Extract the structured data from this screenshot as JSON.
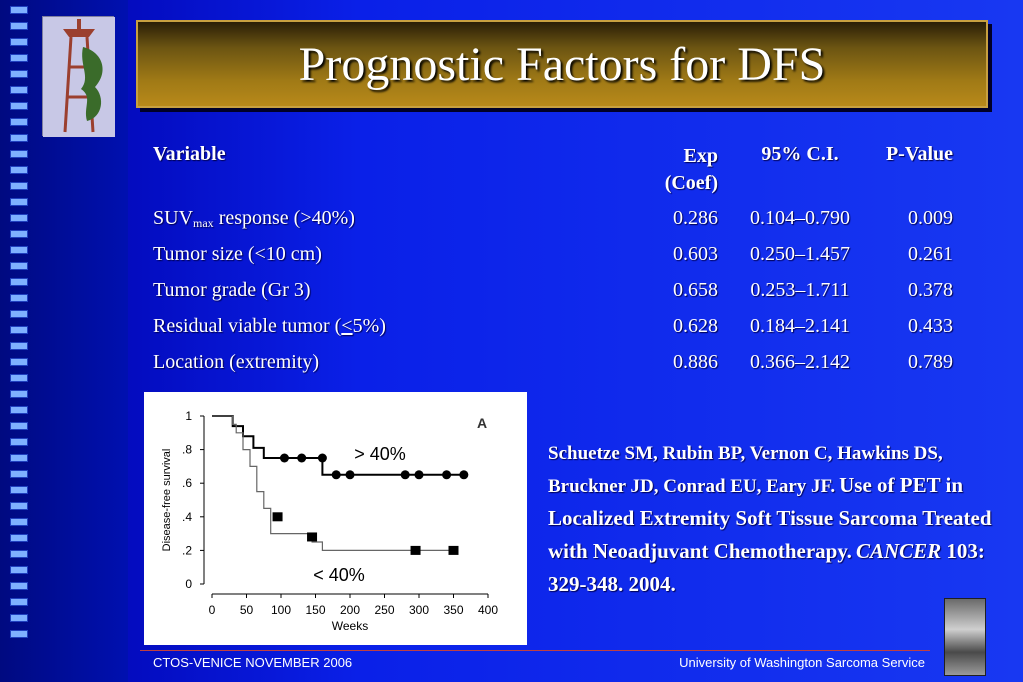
{
  "slide": {
    "title": "Prognostic Factors for DFS"
  },
  "table": {
    "headers": {
      "variable": "Variable",
      "exp_line1": "Exp",
      "exp_line2": "(Coef)",
      "ci": "95% C.I.",
      "pvalue": "P-Value"
    },
    "rows": [
      {
        "variable_main": "SUV",
        "variable_sub": "max",
        "variable_rest": " response (>40%)",
        "exp": "0.286",
        "ci": "0.104–0.790",
        "pvalue": "0.009"
      },
      {
        "variable": "Tumor size (<10 cm)",
        "exp": "0.603",
        "ci": "0.250–1.457",
        "pvalue": "0.261"
      },
      {
        "variable": "Tumor grade (Gr 3)",
        "exp": "0.658",
        "ci": "0.253–1.711",
        "pvalue": "0.378"
      },
      {
        "variable_pre": "Residual viable tumor (",
        "variable_underlined": "<",
        "variable_post": "5%)",
        "exp": "0.628",
        "ci": "0.184–2.141",
        "pvalue": "0.433"
      },
      {
        "variable": "Location (extremity)",
        "exp": "0.886",
        "ci": "0.366–2.142",
        "pvalue": "0.789"
      }
    ]
  },
  "chart_data": {
    "type": "line",
    "panel_label": "A",
    "xlabel": "Weeks",
    "ylabel": "Disease-free survival",
    "xlim": [
      0,
      400
    ],
    "ylim": [
      0,
      1
    ],
    "xticks": [
      "0",
      "50",
      "100",
      "150",
      "200",
      "250",
      "300",
      "350",
      "400"
    ],
    "yticks": [
      "0",
      ".2",
      ".4",
      ".6",
      ".8",
      "1"
    ],
    "series": [
      {
        "name": "> 40%",
        "step_x": [
          0,
          30,
          30,
          45,
          45,
          60,
          60,
          75,
          75,
          160,
          160,
          370
        ],
        "step_y": [
          1.0,
          1.0,
          0.94,
          0.94,
          0.88,
          0.88,
          0.81,
          0.81,
          0.75,
          0.75,
          0.65,
          0.65
        ],
        "censor_x": [
          105,
          130,
          160,
          180,
          200,
          280,
          300,
          340,
          365
        ],
        "censor_y": [
          0.75,
          0.75,
          0.75,
          0.65,
          0.65,
          0.65,
          0.65,
          0.65,
          0.65
        ],
        "censor_marker": "circle"
      },
      {
        "name": "< 40%",
        "step_x": [
          0,
          30,
          30,
          35,
          35,
          45,
          45,
          55,
          55,
          65,
          65,
          75,
          75,
          85,
          85,
          145,
          145,
          160,
          160,
          350
        ],
        "step_y": [
          1.0,
          1.0,
          0.95,
          0.95,
          0.9,
          0.9,
          0.8,
          0.8,
          0.7,
          0.7,
          0.55,
          0.55,
          0.45,
          0.45,
          0.3,
          0.3,
          0.25,
          0.25,
          0.2,
          0.2
        ],
        "censor_x": [
          95,
          145,
          295,
          350
        ],
        "censor_y": [
          0.4,
          0.28,
          0.2,
          0.2
        ],
        "censor_marker": "square"
      }
    ]
  },
  "citation": {
    "authors": "Schuetze SM, Rubin BP, Vernon C, Hawkins DS, Bruckner JD, Conrad EU, Eary JF.",
    "title": "Use of PET in Localized Extremity Soft Tissue Sarcoma Treated with Neoadjuvant Chemotherapy.",
    "journal": "CANCER",
    "details": " 103: 329-348. 2004."
  },
  "footer": {
    "left": "CTOS-VENICE  NOVEMBER 2006",
    "right": "University  of Washington Sarcoma Service"
  },
  "colors": {
    "background": "#0a20e8",
    "title_bar": "#a07a16",
    "footer_rule": "#c04040"
  }
}
